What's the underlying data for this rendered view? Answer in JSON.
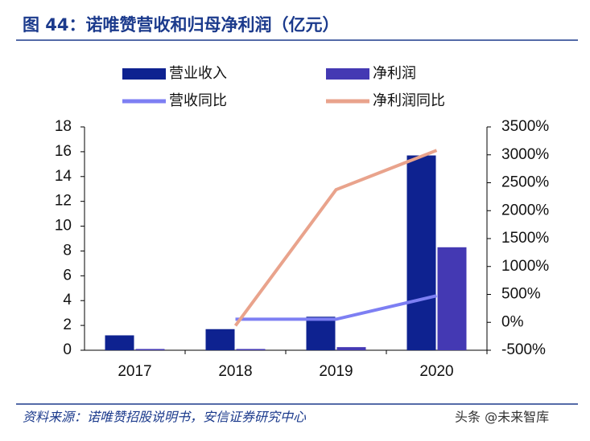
{
  "header": {
    "title": "图 44：诺唯赞营收和归母净利润（亿元）"
  },
  "chart_data": {
    "type": "bar",
    "categories": [
      "2017",
      "2018",
      "2019",
      "2020"
    ],
    "series": [
      {
        "name": "营业收入",
        "type": "bar",
        "color": "#0e2290",
        "values": [
          1.2,
          1.7,
          2.7,
          15.7
        ]
      },
      {
        "name": "净利润",
        "type": "bar",
        "color": "#4439b3",
        "values": [
          0.1,
          0.1,
          0.25,
          8.3
        ]
      },
      {
        "name": "营收同比",
        "type": "line",
        "axis": "y2",
        "color": "#7d7ff3",
        "values": [
          null,
          55,
          55,
          475
        ]
      },
      {
        "name": "净利润同比",
        "type": "line",
        "axis": "y2",
        "color": "#e9a38c",
        "values": [
          null,
          -60,
          2375,
          3080
        ]
      }
    ],
    "ylim": [
      0,
      18
    ],
    "yticks": [
      0,
      2,
      4,
      6,
      8,
      10,
      12,
      14,
      16,
      18
    ],
    "y2lim": [
      -500,
      3500
    ],
    "y2ticks": [
      {
        "value": -500,
        "label": "-500%"
      },
      {
        "value": 0,
        "label": "0%"
      },
      {
        "value": 500,
        "label": "500%"
      },
      {
        "value": 1000,
        "label": "1000%"
      },
      {
        "value": 1500,
        "label": "1500%"
      },
      {
        "value": 2000,
        "label": "2000%"
      },
      {
        "value": 2500,
        "label": "2500%"
      },
      {
        "value": 3000,
        "label": "3000%"
      },
      {
        "value": 3500,
        "label": "3500%"
      }
    ]
  },
  "footer": {
    "source": "资料来源：诺唯赞招股说明书，安信证券研究中心",
    "watermark": "头条 @未来智库"
  }
}
